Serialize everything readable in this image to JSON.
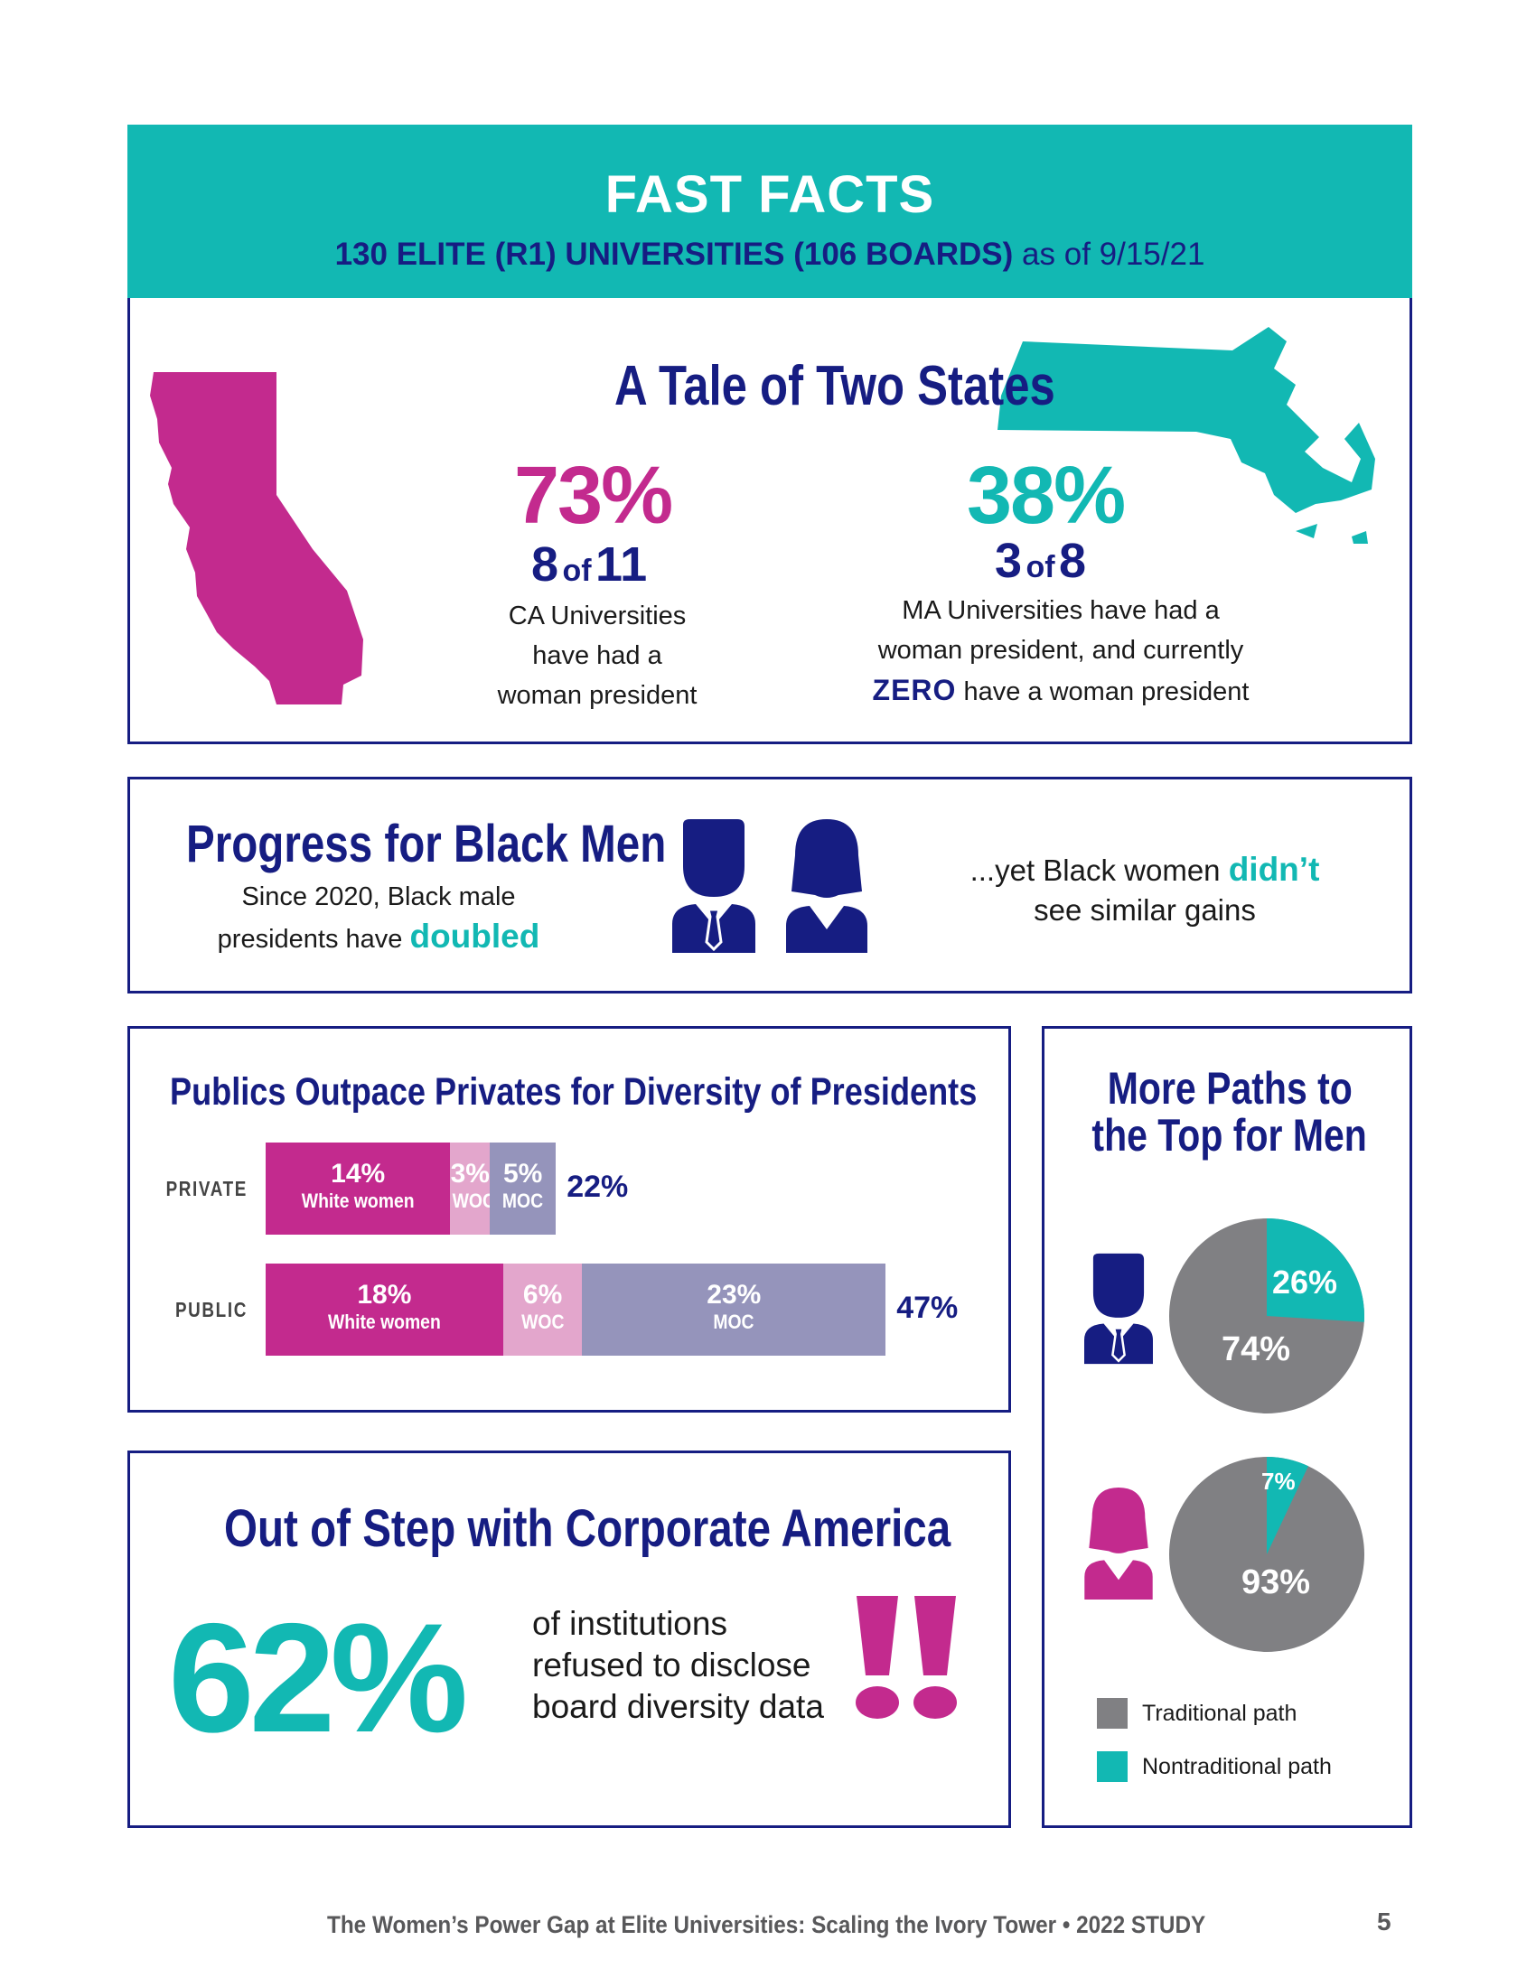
{
  "header": {
    "title": "FAST FACTS",
    "subtitle_bold": "130 ELITE (R1) UNIVERSITIES (106 BOARDS)",
    "subtitle_rest": " as of 9/15/21"
  },
  "states": {
    "title": "A Tale of Two States",
    "ca": {
      "pct": "73%",
      "num": "8",
      "of": "of",
      "den": "11",
      "desc": [
        "CA Universities",
        "have had a",
        "woman president"
      ],
      "color": "#c32a8e"
    },
    "ma": {
      "pct": "38%",
      "num": "3",
      "of": "of",
      "den": "8",
      "desc_line1": "MA Universities have had a",
      "desc_line2": "woman president, and currently",
      "zero": "ZERO",
      "desc_line3": " have a woman president",
      "color": "#12b8b3"
    }
  },
  "progress": {
    "title": "Progress for Black Men",
    "desc_line1": "Since 2020, Black male",
    "desc_line2": "presidents have ",
    "desc_emph": "doubled",
    "yet_line1": "...yet Black women ",
    "yet_emph": "didn’t",
    "yet_line2": "see similar gains"
  },
  "diversity": {
    "title": "Publics Outpace Privates for Diversity of Presidents",
    "rows": [
      {
        "label": "PRIVATE",
        "total": "22%",
        "segments": [
          {
            "value": "14%",
            "label": "White women",
            "pct": 14,
            "color": "#c32a8e"
          },
          {
            "value": "3%",
            "label": "WOC",
            "pct": 3,
            "color": "#e3a6cc"
          },
          {
            "value": "5%",
            "label": "MOC",
            "pct": 5,
            "color": "#9594bb"
          }
        ]
      },
      {
        "label": "PUBLIC",
        "total": "47%",
        "segments": [
          {
            "value": "18%",
            "label": "White women",
            "pct": 18,
            "color": "#c32a8e"
          },
          {
            "value": "6%",
            "label": "WOC",
            "pct": 6,
            "color": "#e3a6cc"
          },
          {
            "value": "23%",
            "label": "MOC",
            "pct": 23,
            "color": "#9594bb"
          }
        ]
      }
    ]
  },
  "corporate": {
    "title": "Out of Step with Corporate America",
    "pct": "62%",
    "text": [
      "of institutions",
      "refused to disclose",
      "board diversity data"
    ]
  },
  "paths": {
    "title_line1": "More Paths to",
    "title_line2": "the Top for Men",
    "men": {
      "traditional": 74,
      "nontraditional": 26,
      "trad_label": "74%",
      "nontrad_label": "26%"
    },
    "women": {
      "traditional": 93,
      "nontraditional": 7,
      "trad_label": "93%",
      "nontrad_label": "7%"
    },
    "legend": [
      {
        "label": "Traditional path",
        "color": "#808083"
      },
      {
        "label": "Nontraditional path",
        "color": "#12b8b3"
      }
    ]
  },
  "footer": {
    "text": "The Women’s Power Gap at Elite Universities: Scaling the Ivory Tower • 2022 STUDY",
    "page": "5"
  }
}
